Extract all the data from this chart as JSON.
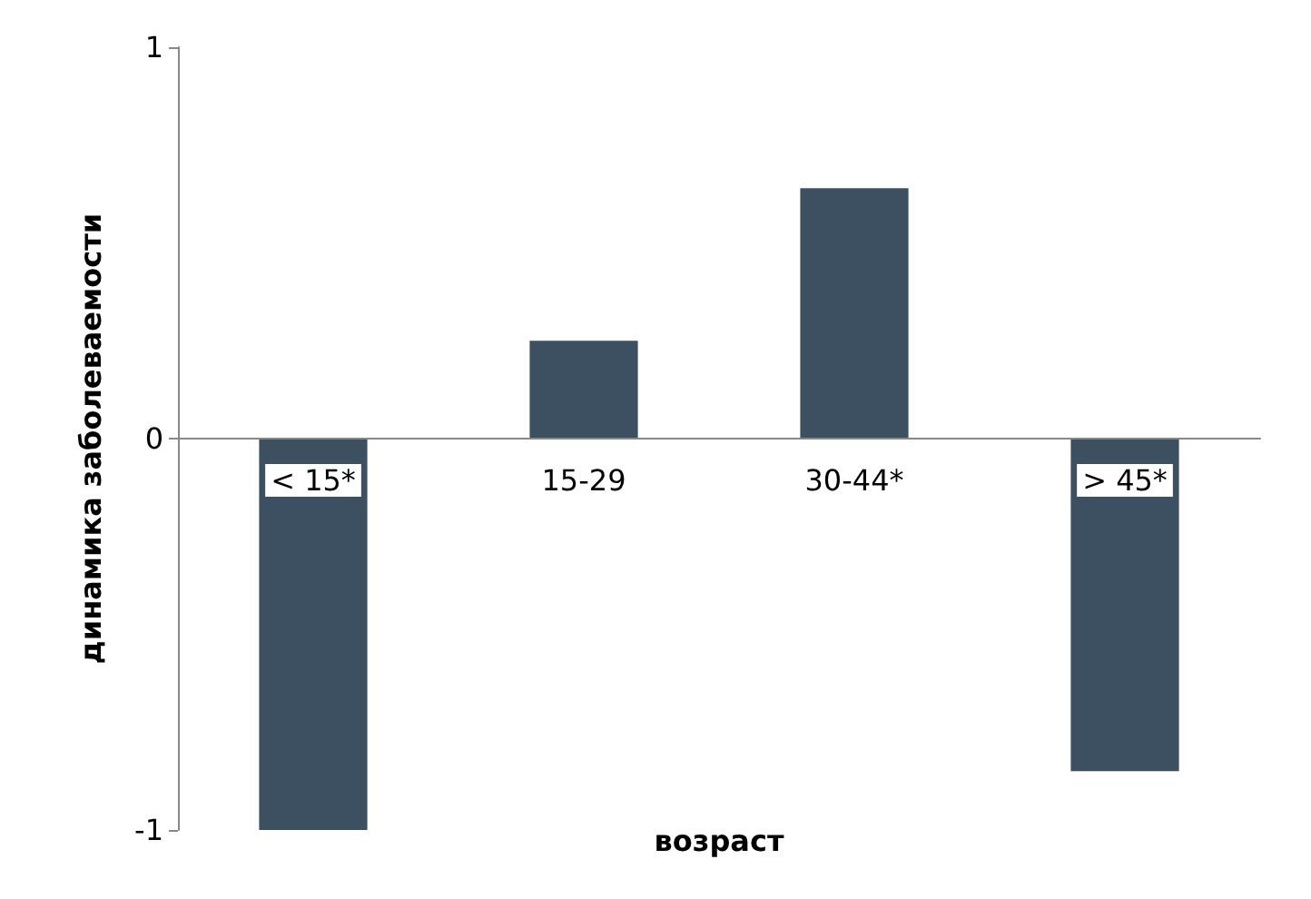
{
  "chart_data": {
    "type": "bar",
    "xlabel": "возраст",
    "ylabel": "динамика заболеваемости",
    "categories": [
      "< 15*",
      "15-29",
      "30-44*",
      "> 45*"
    ],
    "values": [
      -1.0,
      0.25,
      0.64,
      -0.85
    ],
    "color": "#3d5062",
    "ylim": [
      -1,
      1
    ],
    "yticks": [
      -1,
      0,
      1
    ],
    "grid": false
  }
}
